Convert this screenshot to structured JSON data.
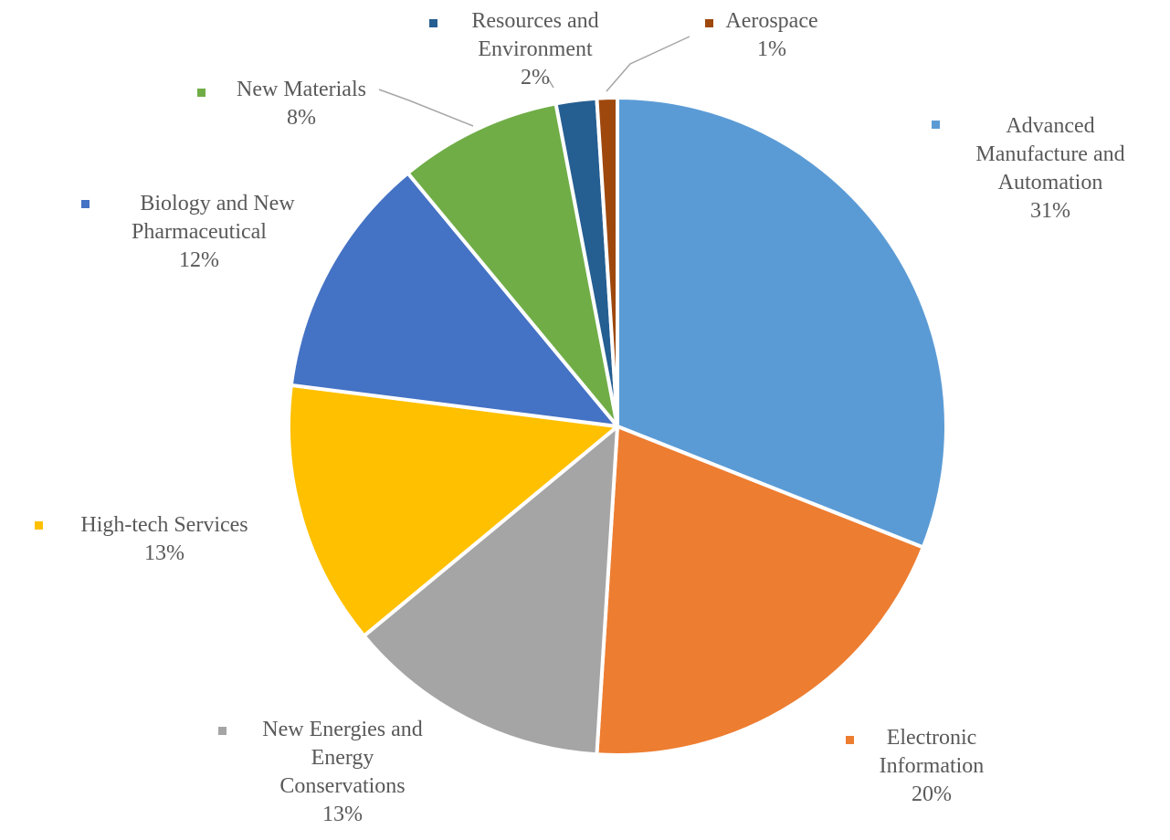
{
  "chart_data": {
    "type": "pie",
    "title": "",
    "unit": "%",
    "series": [
      {
        "values": [
          {
            "label": "Advanced Manufacture and Automation",
            "value": 31,
            "value_label": "31%",
            "color": "#5b9bd5"
          },
          {
            "label": "Electronic Information",
            "value": 20,
            "value_label": "20%",
            "color": "#ed7d31"
          },
          {
            "label": "New Energies and Energy Conservations",
            "value": 13,
            "value_label": "13%",
            "color": "#a5a5a5"
          },
          {
            "label": "High-tech Services",
            "value": 13,
            "value_label": "13%",
            "color": "#ffc000"
          },
          {
            "label": "Biology and New Pharmaceutical",
            "value": 12,
            "value_label": "12%",
            "color": "#4472c4"
          },
          {
            "label": "New Materials",
            "value": 8,
            "value_label": "8%",
            "color": "#70ad47"
          },
          {
            "label": "Resources and Environment",
            "value": 2,
            "value_label": "2%",
            "color": "#255e91"
          },
          {
            "label": "Aerospace",
            "value": 1,
            "value_label": "1%",
            "color": "#9e480e"
          }
        ]
      }
    ],
    "legend": "none",
    "data_labels": "category name and percentage, outside slices"
  }
}
